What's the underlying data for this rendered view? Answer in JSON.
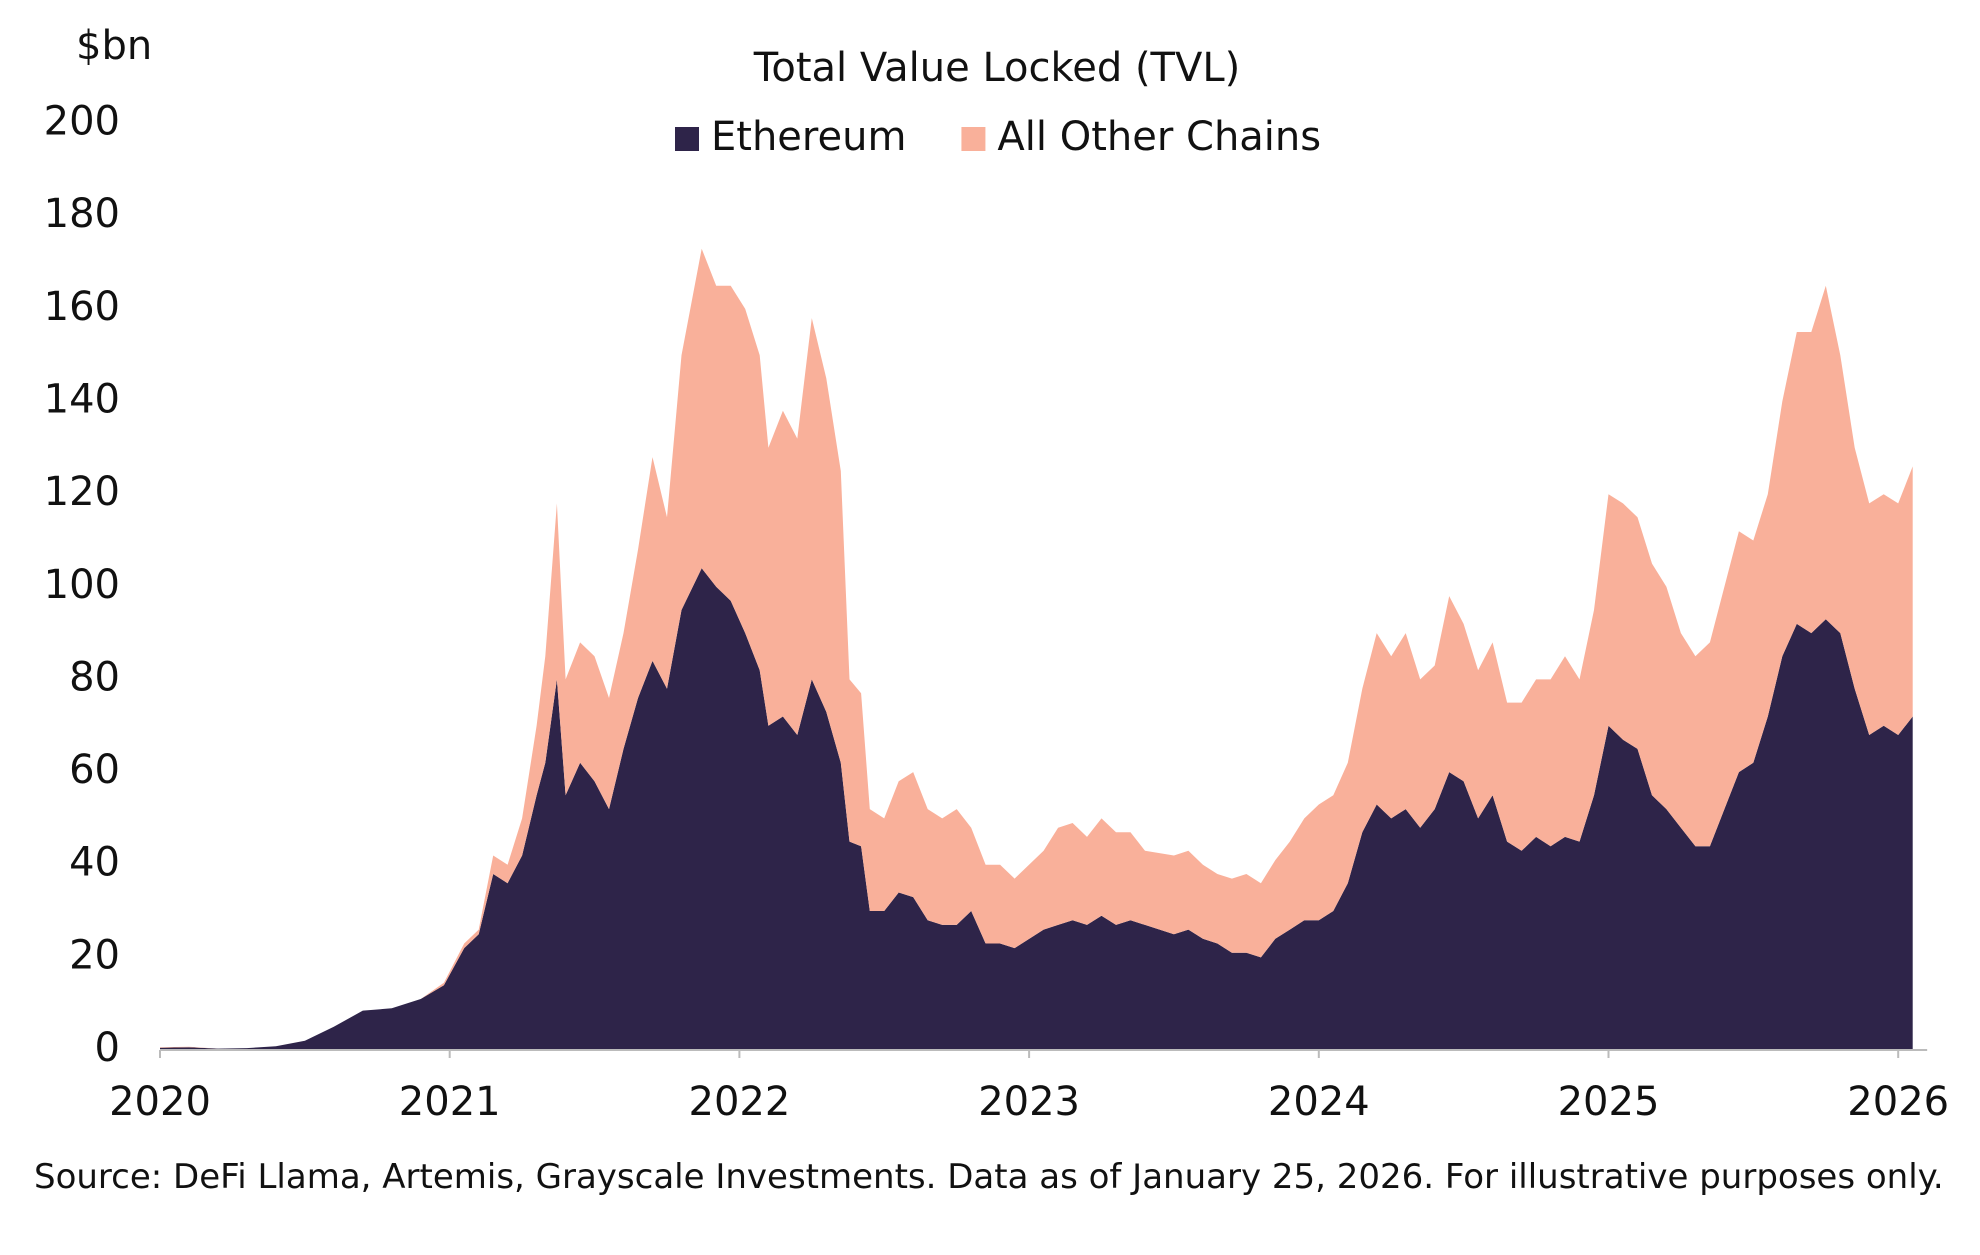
{
  "chart_data": {
    "type": "stacked_area",
    "title": "Total Value Locked (TVL)",
    "y_label": "$bn",
    "source": "Source: DeFi Llama, Artemis, Grayscale Investments. Data as of January 25, 2026. For illustrative purposes only.",
    "x": [
      2020,
      2020.1,
      2020.2,
      2020.3,
      2020.4,
      2020.5,
      2020.6,
      2020.7,
      2020.8,
      2020.9,
      2020.98,
      2021.05,
      2021.1,
      2021.15,
      2021.2,
      2021.25,
      2021.3,
      2021.33,
      2021.37,
      2021.4,
      2021.45,
      2021.5,
      2021.55,
      2021.6,
      2021.65,
      2021.7,
      2021.75,
      2021.8,
      2021.87,
      2021.92,
      2021.97,
      2022.02,
      2022.07,
      2022.1,
      2022.15,
      2022.2,
      2022.25,
      2022.3,
      2022.35,
      2022.38,
      2022.42,
      2022.45,
      2022.5,
      2022.55,
      2022.6,
      2022.65,
      2022.7,
      2022.75,
      2022.8,
      2022.85,
      2022.9,
      2022.95,
      2023.05,
      2023.1,
      2023.15,
      2023.2,
      2023.25,
      2023.3,
      2023.35,
      2023.4,
      2023.5,
      2023.55,
      2023.6,
      2023.65,
      2023.7,
      2023.75,
      2023.8,
      2023.85,
      2023.9,
      2023.95,
      2024,
      2024.05,
      2024.1,
      2024.15,
      2024.2,
      2024.25,
      2024.3,
      2024.35,
      2024.4,
      2024.45,
      2024.5,
      2024.55,
      2024.6,
      2024.65,
      2024.7,
      2024.75,
      2024.8,
      2024.85,
      2024.9,
      2024.95,
      2025,
      2025.05,
      2025.1,
      2025.15,
      2025.2,
      2025.25,
      2025.3,
      2025.35,
      2025.4,
      2025.45,
      2025.5,
      2025.55,
      2025.6,
      2025.65,
      2025.7,
      2025.75,
      2025.8,
      2025.85,
      2025.9,
      2025.95,
      2026,
      2026.05
    ],
    "series": [
      {
        "name": "Ethereum",
        "color": "#2e2449",
        "values": [
          0.5,
          0.6,
          0.3,
          0.4,
          0.8,
          2,
          5,
          8.5,
          9,
          11,
          14,
          22,
          25,
          38,
          36,
          42,
          55,
          62,
          80,
          55,
          62,
          58,
          52,
          65,
          76,
          84,
          78,
          95,
          104,
          100,
          97,
          90,
          82,
          70,
          72,
          68,
          80,
          73,
          62,
          45,
          44,
          30,
          30,
          34,
          33,
          28,
          27,
          27,
          30,
          23,
          23,
          22,
          26,
          27,
          28,
          27,
          29,
          27,
          28,
          27,
          25,
          26,
          24,
          23,
          21,
          21,
          20,
          24,
          26,
          28,
          28,
          30,
          36,
          47,
          53,
          50,
          52,
          48,
          52,
          60,
          58,
          50,
          55,
          45,
          43,
          46,
          44,
          46,
          45,
          55,
          70,
          67,
          65,
          55,
          52,
          48,
          44,
          44,
          52,
          60,
          62,
          72,
          85,
          92,
          90,
          93,
          90,
          78,
          68,
          70,
          68,
          72
        ]
      },
      {
        "name": "All Other Chains",
        "color": "#f9b09a",
        "values": [
          0.1,
          0.1,
          0,
          0,
          0,
          0,
          0,
          0,
          0,
          0,
          0.5,
          1,
          1,
          4,
          4,
          8,
          15,
          23,
          38,
          25,
          26,
          27,
          24,
          25,
          32,
          44,
          37,
          55,
          69,
          65,
          68,
          70,
          68,
          60,
          66,
          64,
          78,
          72,
          63,
          35,
          33,
          22,
          20,
          24,
          27,
          24,
          23,
          25,
          18,
          17,
          17,
          15,
          17,
          21,
          21,
          19,
          21,
          20,
          19,
          16,
          17,
          17,
          16,
          15,
          16,
          17,
          16,
          17,
          19,
          22,
          25,
          25,
          26,
          31,
          37,
          35,
          38,
          32,
          31,
          38,
          34,
          32,
          33,
          30,
          32,
          34,
          36,
          39,
          35,
          40,
          50,
          51,
          50,
          50,
          48,
          42,
          41,
          44,
          48,
          52,
          48,
          48,
          55,
          63,
          65,
          72,
          60,
          52,
          50,
          50,
          50,
          54
        ]
      }
    ],
    "xlim": [
      2020,
      2026.1
    ],
    "xticks": [
      2020,
      2021,
      2022,
      2023,
      2024,
      2025,
      2026
    ],
    "ylim": [
      0,
      200
    ],
    "yticks": [
      0,
      20,
      40,
      60,
      80,
      100,
      120,
      140,
      160,
      180,
      200
    ],
    "grid": false
  }
}
